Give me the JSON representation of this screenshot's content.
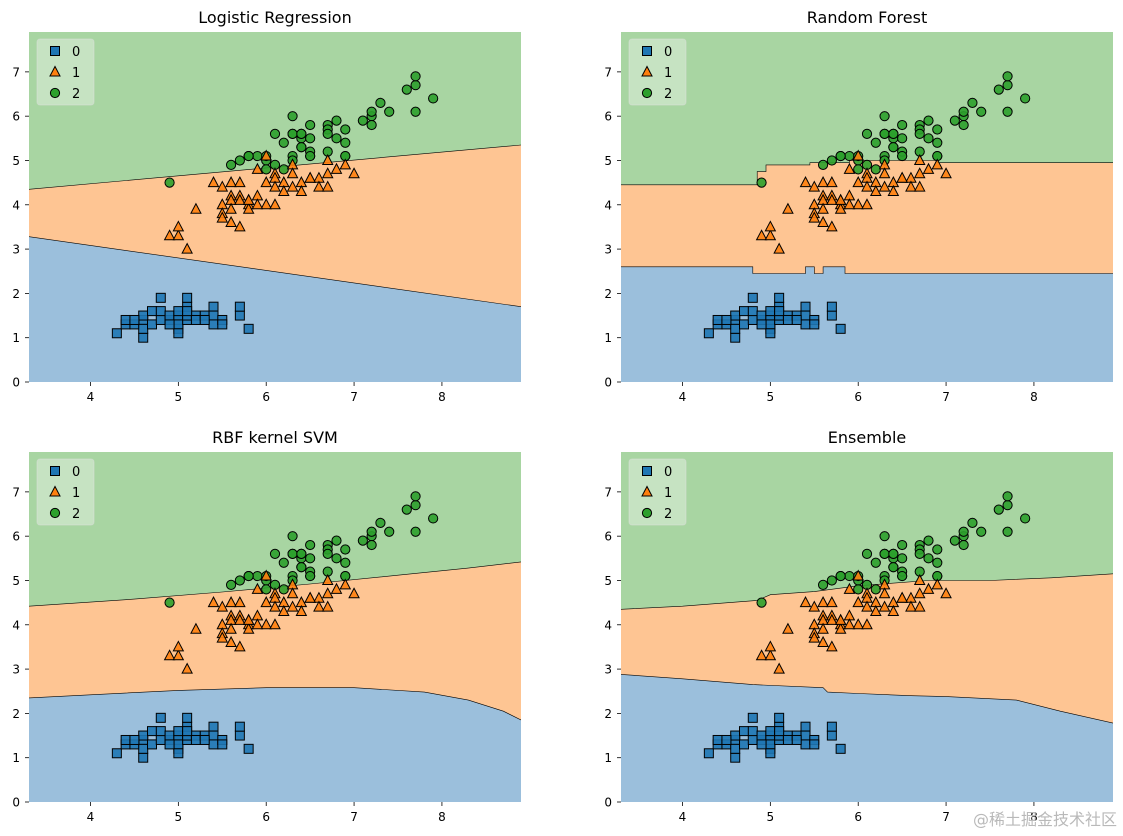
{
  "colors": {
    "class0": "#1f77b4",
    "class1": "#ff7f0e",
    "class2": "#2ca02c",
    "region0": "#9bbfdc",
    "region1": "#fec593",
    "region2": "#a8d5a2",
    "marker_edge": "#000000",
    "text": "#000000"
  },
  "legend_labels": [
    "0",
    "1",
    "2"
  ],
  "watermark": "@稀土掘金技术社区",
  "chart_data": [
    {
      "type": "scatter",
      "title": "Logistic Regression",
      "xlim": [
        3.3,
        8.9
      ],
      "ylim": [
        0,
        7.9
      ],
      "xticks": [
        4,
        5,
        6,
        7,
        8
      ],
      "yticks": [
        0,
        1,
        2,
        3,
        4,
        5,
        6,
        7
      ],
      "legend": "top-left",
      "boundaries": {
        "b01": [
          [
            3.3,
            3.28
          ],
          [
            8.9,
            1.7
          ]
        ],
        "b12": [
          [
            3.3,
            4.35
          ],
          [
            8.9,
            5.35
          ]
        ]
      }
    },
    {
      "type": "scatter",
      "title": "Random Forest",
      "xlim": [
        3.3,
        8.9
      ],
      "ylim": [
        0,
        7.9
      ],
      "xticks": [
        4,
        5,
        6,
        7,
        8
      ],
      "yticks": [
        0,
        1,
        2,
        3,
        4,
        5,
        6,
        7
      ],
      "legend": "top-left",
      "boundaries": {
        "b01": [
          [
            3.3,
            2.6
          ],
          [
            4.8,
            2.6
          ],
          [
            4.8,
            2.45
          ],
          [
            5.4,
            2.45
          ],
          [
            5.4,
            2.6
          ],
          [
            5.5,
            2.6
          ],
          [
            5.5,
            2.45
          ],
          [
            5.6,
            2.45
          ],
          [
            5.6,
            2.6
          ],
          [
            5.85,
            2.6
          ],
          [
            5.85,
            2.45
          ],
          [
            8.9,
            2.45
          ]
        ],
        "b12": [
          [
            3.3,
            4.45
          ],
          [
            4.85,
            4.45
          ],
          [
            4.85,
            4.75
          ],
          [
            4.95,
            4.75
          ],
          [
            4.95,
            4.9
          ],
          [
            5.45,
            4.9
          ],
          [
            5.45,
            4.95
          ],
          [
            5.9,
            4.95
          ],
          [
            5.9,
            5.0
          ],
          [
            6.9,
            5.0
          ],
          [
            6.9,
            4.95
          ],
          [
            8.9,
            4.95
          ]
        ]
      }
    },
    {
      "type": "scatter",
      "title": "RBF kernel SVM",
      "xlim": [
        3.3,
        8.9
      ],
      "ylim": [
        0,
        7.9
      ],
      "xticks": [
        4,
        5,
        6,
        7,
        8
      ],
      "yticks": [
        0,
        1,
        2,
        3,
        4,
        5,
        6,
        7
      ],
      "legend": "top-left",
      "boundaries": {
        "b01": [
          [
            3.3,
            2.35
          ],
          [
            4.0,
            2.42
          ],
          [
            5.0,
            2.52
          ],
          [
            6.0,
            2.58
          ],
          [
            7.0,
            2.58
          ],
          [
            7.8,
            2.48
          ],
          [
            8.3,
            2.3
          ],
          [
            8.7,
            2.05
          ],
          [
            8.9,
            1.85
          ]
        ],
        "b12": [
          [
            3.3,
            4.42
          ],
          [
            4.5,
            4.58
          ],
          [
            5.5,
            4.74
          ],
          [
            6.5,
            4.92
          ],
          [
            7.5,
            5.12
          ],
          [
            8.3,
            5.28
          ],
          [
            8.9,
            5.42
          ]
        ]
      }
    },
    {
      "type": "scatter",
      "title": "Ensemble",
      "xlim": [
        3.3,
        8.9
      ],
      "ylim": [
        0,
        7.9
      ],
      "xticks": [
        4,
        5,
        6,
        7,
        8
      ],
      "yticks": [
        0,
        1,
        2,
        3,
        4,
        5,
        6,
        7
      ],
      "legend": "top-left",
      "boundaries": {
        "b01": [
          [
            3.3,
            2.88
          ],
          [
            4.0,
            2.78
          ],
          [
            4.8,
            2.65
          ],
          [
            5.6,
            2.58
          ],
          [
            5.65,
            2.48
          ],
          [
            6.0,
            2.45
          ],
          [
            6.6,
            2.4
          ],
          [
            7.0,
            2.38
          ],
          [
            7.8,
            2.3
          ],
          [
            8.3,
            2.05
          ],
          [
            8.9,
            1.78
          ]
        ],
        "b12": [
          [
            3.3,
            4.35
          ],
          [
            4.0,
            4.42
          ],
          [
            4.85,
            4.55
          ],
          [
            5.0,
            4.68
          ],
          [
            5.5,
            4.75
          ],
          [
            6.0,
            4.88
          ],
          [
            6.8,
            5.0
          ],
          [
            7.5,
            5.0
          ],
          [
            8.2,
            5.06
          ],
          [
            8.9,
            5.15
          ]
        ]
      }
    }
  ],
  "series": [
    {
      "name": "0",
      "marker": "square",
      "points": [
        [
          4.3,
          1.1
        ],
        [
          4.4,
          1.3
        ],
        [
          4.4,
          1.4
        ],
        [
          4.5,
          1.3
        ],
        [
          4.6,
          1.0
        ],
        [
          4.6,
          1.4
        ],
        [
          4.6,
          1.5
        ],
        [
          4.6,
          1.2
        ],
        [
          4.7,
          1.3
        ],
        [
          4.7,
          1.6
        ],
        [
          4.8,
          1.4
        ],
        [
          4.8,
          1.6
        ],
        [
          4.8,
          1.9
        ],
        [
          4.9,
          1.4
        ],
        [
          4.9,
          1.5
        ],
        [
          5.0,
          1.4
        ],
        [
          5.0,
          1.5
        ],
        [
          5.0,
          1.6
        ],
        [
          5.0,
          1.2
        ],
        [
          5.0,
          1.3
        ],
        [
          5.1,
          1.4
        ],
        [
          5.1,
          1.5
        ],
        [
          5.1,
          1.7
        ],
        [
          5.1,
          1.9
        ],
        [
          5.2,
          1.5
        ],
        [
          5.2,
          1.4
        ],
        [
          5.3,
          1.5
        ],
        [
          5.4,
          1.7
        ],
        [
          5.4,
          1.5
        ],
        [
          5.4,
          1.3
        ],
        [
          5.5,
          1.4
        ],
        [
          5.5,
          1.3
        ],
        [
          5.7,
          1.5
        ],
        [
          5.7,
          1.7
        ],
        [
          5.8,
          1.2
        ],
        [
          5.1,
          1.6
        ],
        [
          4.9,
          1.3
        ],
        [
          5.3,
          1.4
        ],
        [
          4.5,
          1.4
        ],
        [
          5.0,
          1.1
        ]
      ]
    },
    {
      "name": "1",
      "marker": "triangle",
      "points": [
        [
          4.9,
          3.3
        ],
        [
          5.0,
          3.3
        ],
        [
          5.0,
          3.5
        ],
        [
          5.1,
          3.0
        ],
        [
          5.2,
          3.9
        ],
        [
          5.4,
          4.5
        ],
        [
          5.5,
          4.0
        ],
        [
          5.5,
          3.8
        ],
        [
          5.5,
          3.7
        ],
        [
          5.5,
          4.4
        ],
        [
          5.6,
          3.6
        ],
        [
          5.6,
          4.2
        ],
        [
          5.6,
          4.1
        ],
        [
          5.6,
          4.5
        ],
        [
          5.6,
          3.9
        ],
        [
          5.7,
          4.5
        ],
        [
          5.7,
          3.5
        ],
        [
          5.7,
          4.2
        ],
        [
          5.7,
          4.1
        ],
        [
          5.8,
          4.1
        ],
        [
          5.8,
          4.0
        ],
        [
          5.8,
          3.9
        ],
        [
          5.9,
          4.2
        ],
        [
          5.9,
          4.8
        ],
        [
          6.0,
          4.5
        ],
        [
          6.0,
          4.0
        ],
        [
          6.0,
          5.1
        ],
        [
          6.1,
          4.7
        ],
        [
          6.1,
          4.0
        ],
        [
          6.1,
          4.6
        ],
        [
          6.2,
          4.5
        ],
        [
          6.2,
          4.3
        ],
        [
          6.3,
          4.4
        ],
        [
          6.3,
          4.9
        ],
        [
          6.3,
          4.7
        ],
        [
          6.4,
          4.5
        ],
        [
          6.4,
          4.3
        ],
        [
          6.5,
          4.6
        ],
        [
          6.6,
          4.6
        ],
        [
          6.6,
          4.4
        ],
        [
          6.7,
          4.7
        ],
        [
          6.7,
          4.4
        ],
        [
          6.7,
          5.0
        ],
        [
          6.8,
          4.8
        ],
        [
          6.9,
          4.9
        ],
        [
          7.0,
          4.7
        ],
        [
          6.1,
          4.4
        ],
        [
          5.9,
          4.0
        ],
        [
          5.8,
          4.1
        ],
        [
          6.5,
          4.6
        ]
      ]
    },
    {
      "name": "2",
      "marker": "circle",
      "points": [
        [
          4.9,
          4.5
        ],
        [
          5.6,
          4.9
        ],
        [
          5.7,
          5.0
        ],
        [
          5.8,
          5.1
        ],
        [
          5.9,
          5.1
        ],
        [
          6.0,
          5.0
        ],
        [
          6.1,
          5.6
        ],
        [
          6.2,
          4.8
        ],
        [
          6.2,
          5.4
        ],
        [
          6.3,
          5.6
        ],
        [
          6.3,
          6.0
        ],
        [
          6.3,
          5.1
        ],
        [
          6.3,
          5.0
        ],
        [
          6.4,
          5.3
        ],
        [
          6.4,
          5.5
        ],
        [
          6.4,
          5.6
        ],
        [
          6.5,
          5.8
        ],
        [
          6.5,
          5.5
        ],
        [
          6.5,
          5.1
        ],
        [
          6.5,
          5.2
        ],
        [
          6.7,
          5.8
        ],
        [
          6.7,
          5.7
        ],
        [
          6.7,
          5.6
        ],
        [
          6.7,
          5.2
        ],
        [
          6.8,
          5.5
        ],
        [
          6.8,
          5.9
        ],
        [
          6.9,
          5.7
        ],
        [
          6.9,
          5.1
        ],
        [
          6.9,
          5.4
        ],
        [
          7.1,
          5.9
        ],
        [
          7.2,
          6.0
        ],
        [
          7.2,
          5.8
        ],
        [
          7.2,
          6.1
        ],
        [
          7.3,
          6.3
        ],
        [
          7.4,
          6.1
        ],
        [
          7.6,
          6.6
        ],
        [
          7.7,
          6.7
        ],
        [
          7.7,
          6.9
        ],
        [
          7.7,
          6.1
        ],
        [
          7.9,
          6.4
        ],
        [
          5.8,
          5.1
        ],
        [
          6.0,
          4.8
        ],
        [
          6.1,
          4.9
        ],
        [
          6.3,
          5.6
        ],
        [
          6.4,
          5.6
        ],
        [
          6.5,
          5.1
        ],
        [
          6.9,
          5.1
        ],
        [
          6.4,
          5.3
        ],
        [
          6.0,
          5.1
        ],
        [
          5.8,
          5.1
        ]
      ]
    }
  ]
}
